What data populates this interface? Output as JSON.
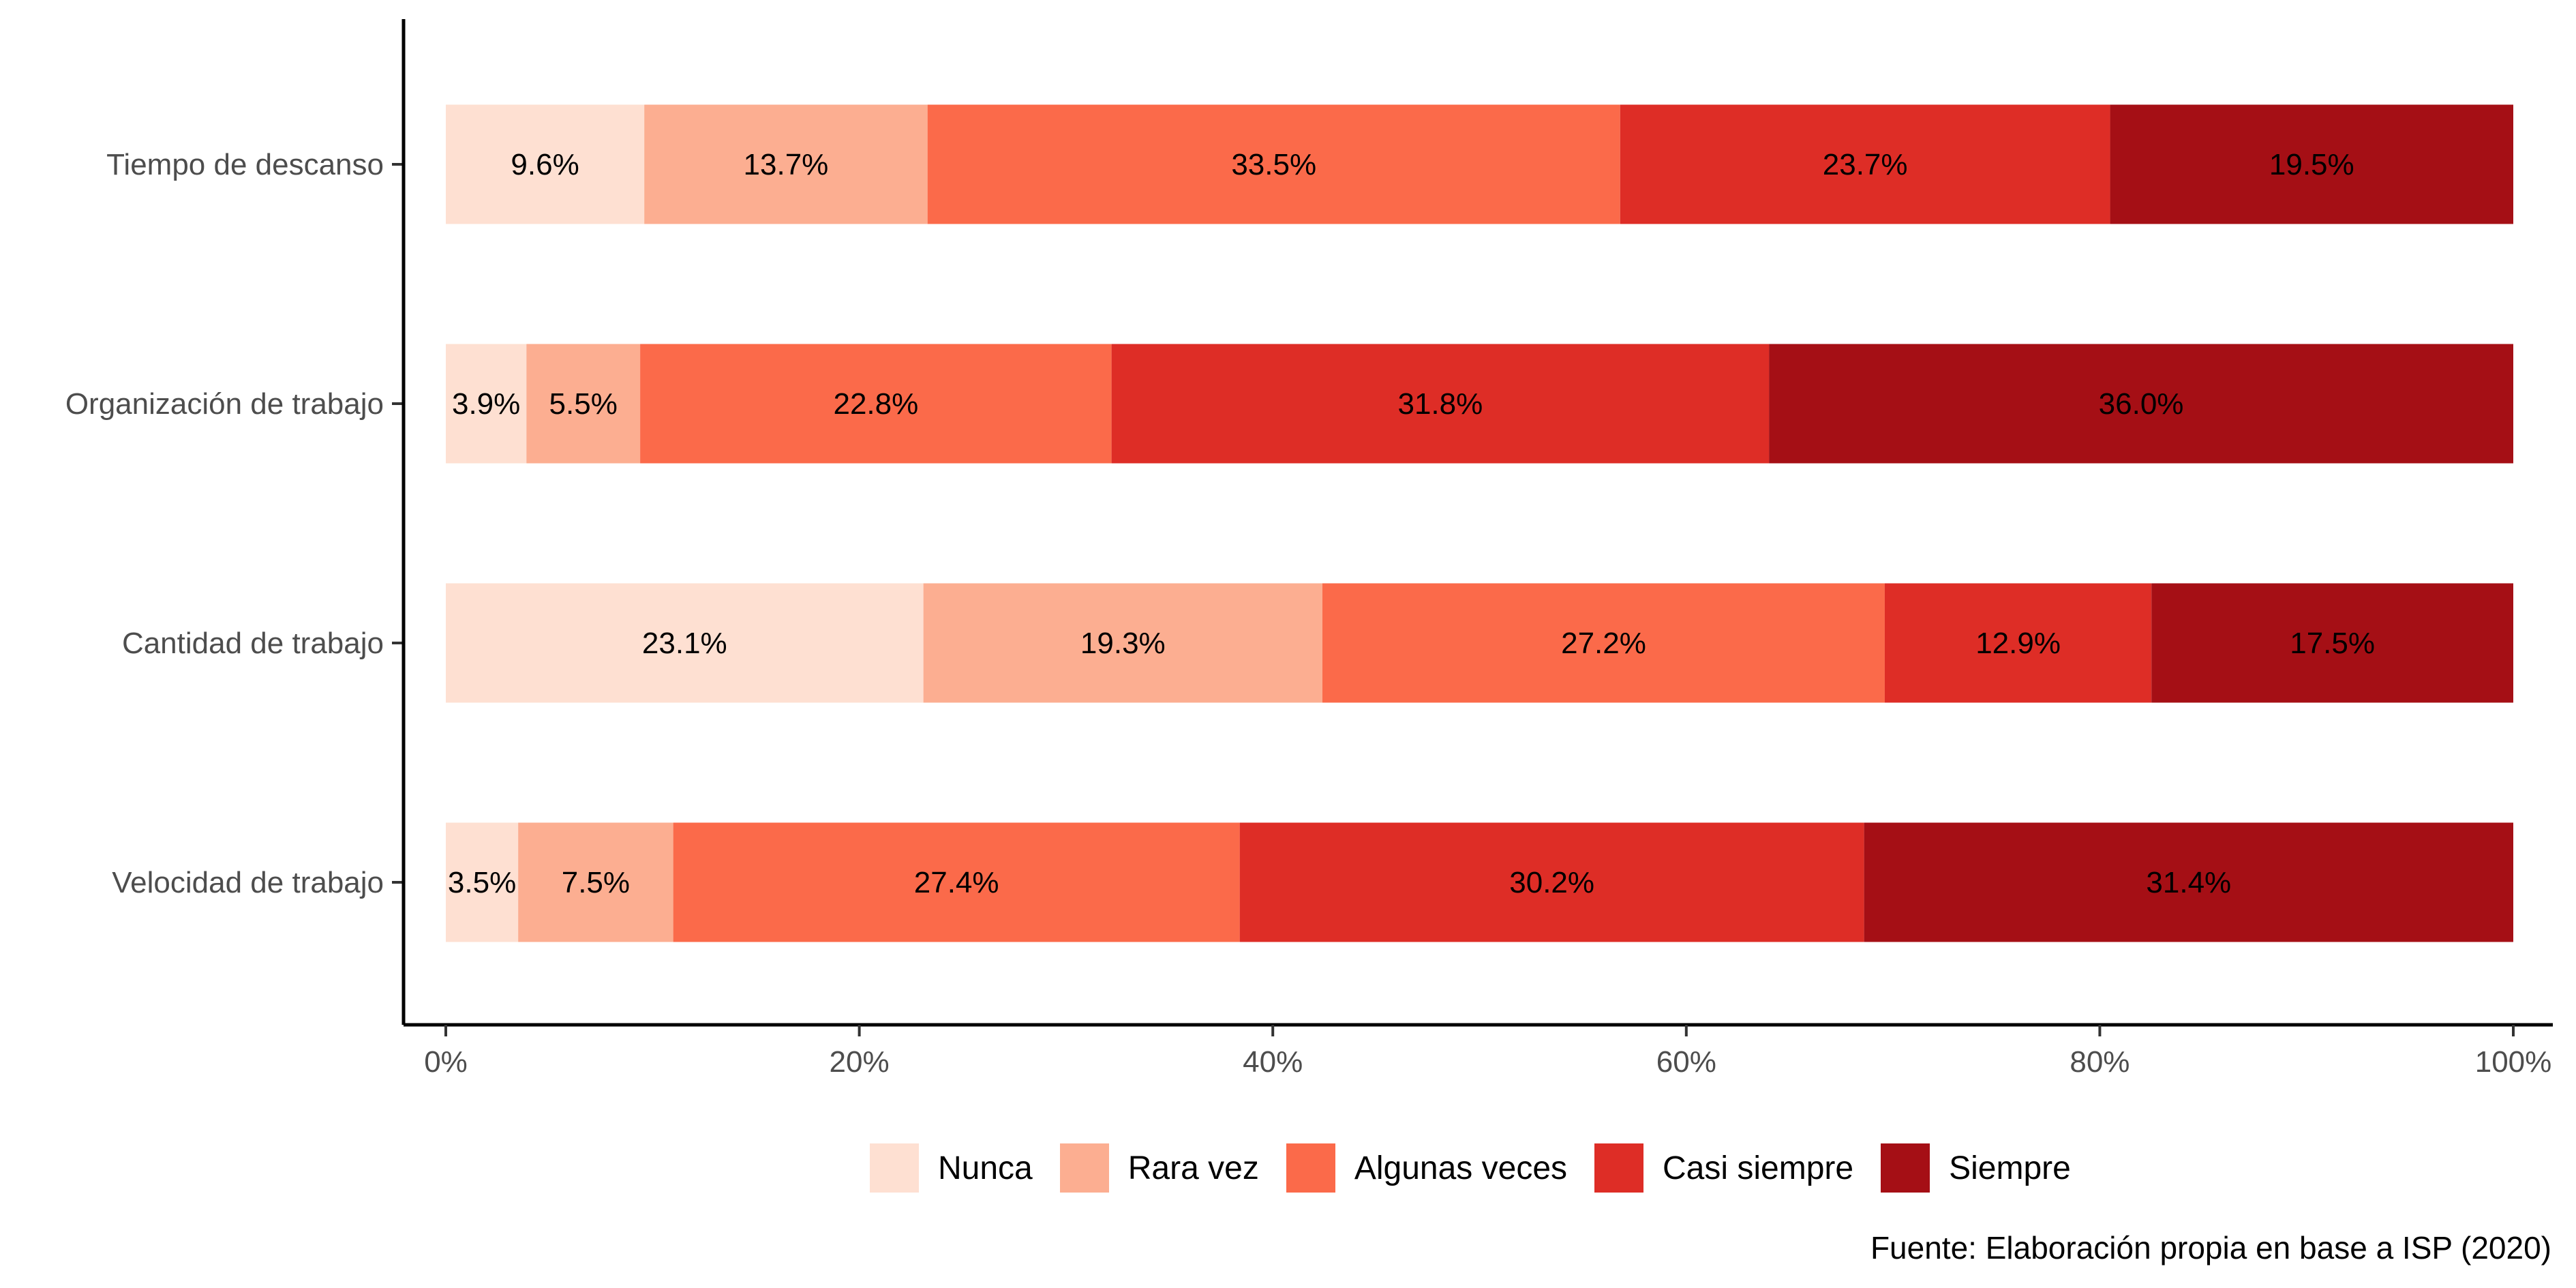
{
  "chart_data": {
    "type": "bar",
    "orientation": "horizontal",
    "stacked": true,
    "categories": [
      "Tiempo de descanso",
      "Organización de trabajo",
      "Cantidad de trabajo",
      "Velocidad de trabajo"
    ],
    "series": [
      {
        "name": "Nunca",
        "color": "#fee0d2",
        "values": [
          9.6,
          3.9,
          23.1,
          3.5
        ]
      },
      {
        "name": "Rara vez",
        "color": "#fcae91",
        "values": [
          13.7,
          5.5,
          19.3,
          7.5
        ]
      },
      {
        "name": "Algunas veces",
        "color": "#fb6a4a",
        "values": [
          33.5,
          22.8,
          27.2,
          27.4
        ]
      },
      {
        "name": "Casi siempre",
        "color": "#de2d26",
        "values": [
          23.7,
          31.8,
          12.9,
          30.2
        ]
      },
      {
        "name": "Siempre",
        "color": "#a50f15",
        "values": [
          19.5,
          36.0,
          17.5,
          31.4
        ]
      }
    ],
    "data_labels": [
      [
        "9.6%",
        "13.7%",
        "33.5%",
        "23.7%",
        "19.5%"
      ],
      [
        "3.9%",
        "5.5%",
        "22.8%",
        "31.8%",
        "36.0%"
      ],
      [
        "23.1%",
        "19.3%",
        "27.2%",
        "12.9%",
        "17.5%"
      ],
      [
        "3.5%",
        "7.5%",
        "27.4%",
        "30.2%",
        "31.4%"
      ]
    ],
    "x_ticks": [
      "0%",
      "20%",
      "40%",
      "60%",
      "80%",
      "100%"
    ],
    "xlim": [
      0,
      100
    ],
    "xlabel": "",
    "ylabel": "",
    "legend_position": "bottom",
    "grid": false,
    "caption": "Fuente: Elaboración propia en base a ISP (2020)"
  }
}
